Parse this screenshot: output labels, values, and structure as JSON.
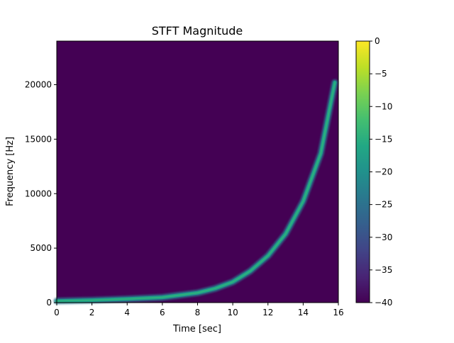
{
  "chart_data": {
    "type": "heatmap",
    "title": "STFT Magnitude",
    "xlabel": "Time [sec]",
    "ylabel": "Frequency [Hz]",
    "xlim": [
      0,
      16
    ],
    "ylim": [
      0,
      24000
    ],
    "x_ticks": [
      0,
      2,
      4,
      6,
      8,
      10,
      12,
      14,
      16
    ],
    "y_ticks": [
      0,
      5000,
      10000,
      15000,
      20000
    ],
    "colorbar": {
      "range": [
        -40,
        0
      ],
      "ticks": [
        0,
        -5,
        -10,
        -15,
        -20,
        -25,
        -30,
        -35,
        -40
      ],
      "colormap": "viridis"
    },
    "background_color": "#440154",
    "ridge": {
      "description_points": [
        {
          "t": 0.0,
          "f": 150
        },
        {
          "t": 2.0,
          "f": 220
        },
        {
          "t": 4.0,
          "f": 330
        },
        {
          "t": 6.0,
          "f": 480
        },
        {
          "t": 8.0,
          "f": 900
        },
        {
          "t": 9.0,
          "f": 1300
        },
        {
          "t": 10.0,
          "f": 1900
        },
        {
          "t": 11.0,
          "f": 2900
        },
        {
          "t": 12.0,
          "f": 4300
        },
        {
          "t": 13.0,
          "f": 6300
        },
        {
          "t": 14.0,
          "f": 9300
        },
        {
          "t": 15.0,
          "f": 13700
        },
        {
          "t": 15.8,
          "f": 20200
        }
      ]
    }
  }
}
